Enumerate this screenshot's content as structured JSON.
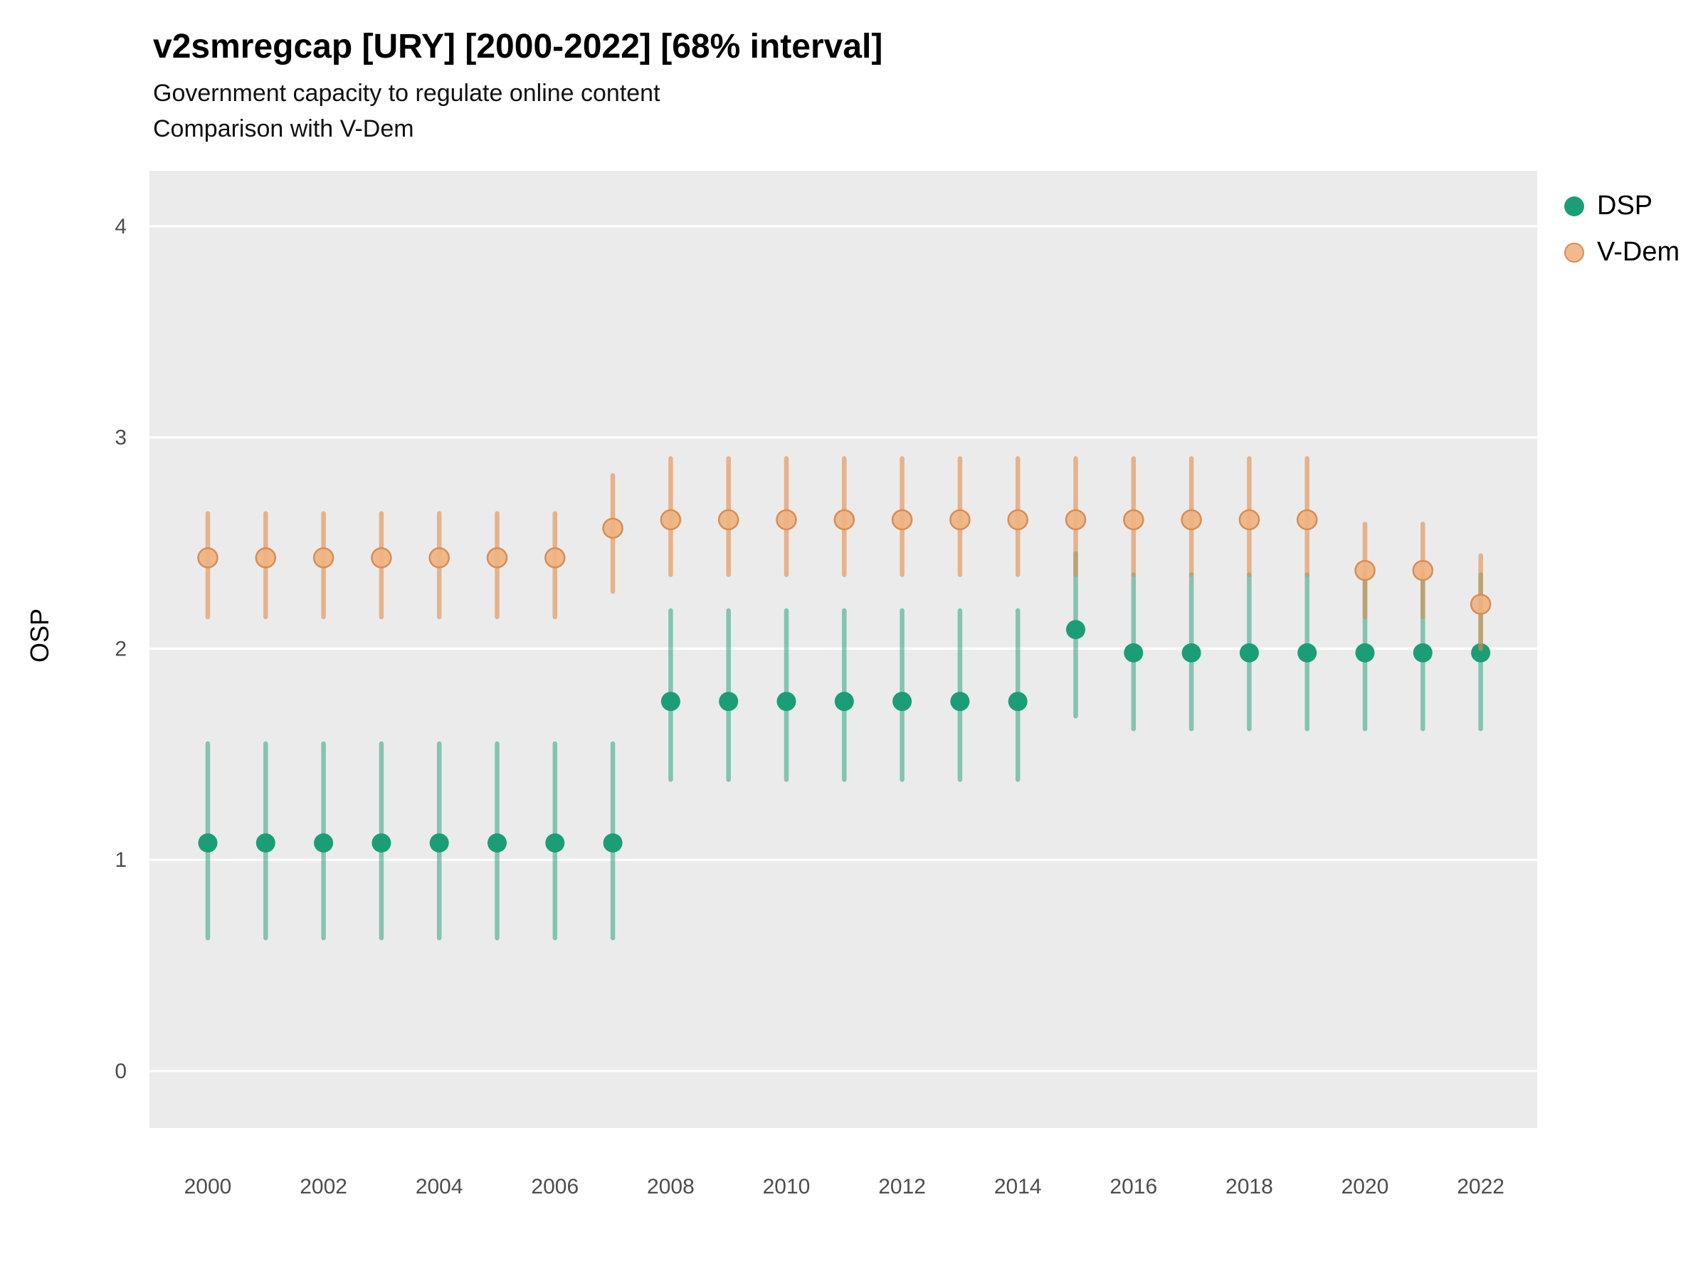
{
  "header": {
    "title": "v2smregcap [URY] [2000-2022] [68% interval]",
    "subtitle1": "Government capacity to regulate online content",
    "subtitle2": "Comparison with V-Dem"
  },
  "chart_data": {
    "type": "scatter",
    "variant": "pointrange",
    "title": "v2smregcap [URY] [2000-2022] [68% interval]",
    "subtitle": [
      "Government capacity to regulate online content",
      "Comparison with V-Dem"
    ],
    "xlabel": "",
    "ylabel": "OSP",
    "ylim": [
      -0.3,
      4.3
    ],
    "yticks": [
      0,
      1,
      2,
      3,
      4
    ],
    "xticks": [
      2000,
      2002,
      2004,
      2006,
      2008,
      2010,
      2012,
      2014,
      2016,
      2018,
      2020,
      2022
    ],
    "x": [
      2000,
      2001,
      2002,
      2003,
      2004,
      2005,
      2006,
      2007,
      2008,
      2009,
      2010,
      2011,
      2012,
      2013,
      2014,
      2015,
      2016,
      2017,
      2018,
      2019,
      2020,
      2021,
      2022
    ],
    "grid": "horizontal-major-white-on-gray",
    "legend_position": "right",
    "interval_label": "68% interval",
    "series": [
      {
        "name": "DSP",
        "point_color": "#1b9e77",
        "line_color": "rgba(27,158,119,0.5)",
        "point_stroke": "#178a68",
        "est": [
          1.08,
          1.08,
          1.08,
          1.08,
          1.08,
          1.08,
          1.08,
          1.08,
          1.75,
          1.75,
          1.75,
          1.75,
          1.75,
          1.75,
          1.75,
          2.09,
          1.98,
          1.98,
          1.98,
          1.98,
          1.98,
          1.98,
          1.98
        ],
        "lo": [
          0.63,
          0.63,
          0.63,
          0.63,
          0.63,
          0.63,
          0.63,
          0.63,
          1.38,
          1.38,
          1.38,
          1.38,
          1.38,
          1.38,
          1.38,
          1.68,
          1.62,
          1.62,
          1.62,
          1.62,
          1.62,
          1.62,
          1.62
        ],
        "hi": [
          1.55,
          1.55,
          1.55,
          1.55,
          1.55,
          1.55,
          1.55,
          1.55,
          2.18,
          2.18,
          2.18,
          2.18,
          2.18,
          2.18,
          2.18,
          2.45,
          2.35,
          2.35,
          2.35,
          2.35,
          2.35,
          2.35,
          2.35
        ]
      },
      {
        "name": "V-Dem",
        "point_color": "rgba(238,178,128,0.9)",
        "line_color": "rgba(226,140,74,0.6)",
        "point_stroke": "#d98d55",
        "est": [
          2.43,
          2.43,
          2.43,
          2.43,
          2.43,
          2.43,
          2.43,
          2.57,
          2.61,
          2.61,
          2.61,
          2.61,
          2.61,
          2.61,
          2.61,
          2.61,
          2.61,
          2.61,
          2.61,
          2.61,
          2.37,
          2.37,
          2.21
        ],
        "lo": [
          2.15,
          2.15,
          2.15,
          2.15,
          2.15,
          2.15,
          2.15,
          2.27,
          2.35,
          2.35,
          2.35,
          2.35,
          2.35,
          2.35,
          2.35,
          2.35,
          2.35,
          2.35,
          2.35,
          2.35,
          2.15,
          2.15,
          2.0
        ],
        "hi": [
          2.64,
          2.64,
          2.64,
          2.64,
          2.64,
          2.64,
          2.64,
          2.82,
          2.9,
          2.9,
          2.9,
          2.9,
          2.9,
          2.9,
          2.9,
          2.9,
          2.9,
          2.9,
          2.9,
          2.9,
          2.59,
          2.59,
          2.44
        ]
      }
    ]
  }
}
